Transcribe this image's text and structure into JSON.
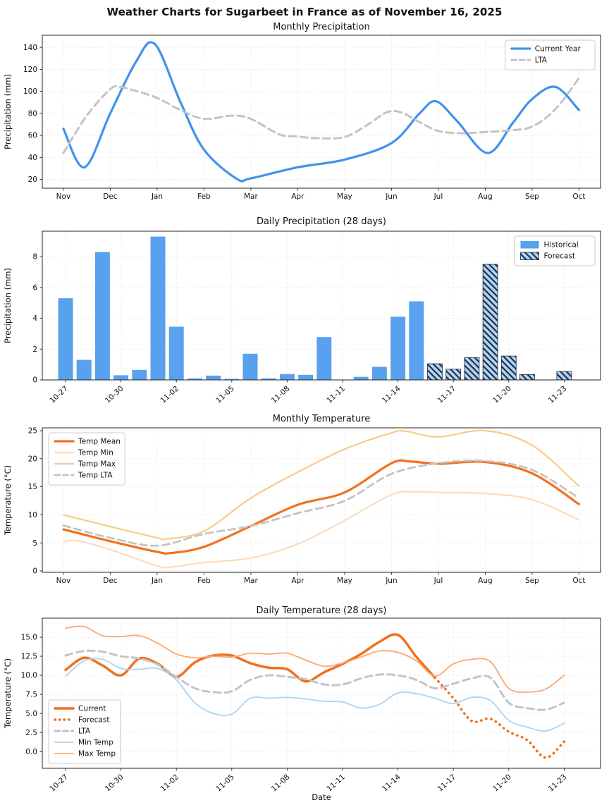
{
  "page": {
    "title": "Weather Charts for Sugarbeet in France as of November 16, 2025"
  },
  "colors": {
    "blue_line": "#4093ec",
    "bar_blue": "#57a1ee",
    "forecast_fill": "#aed2f5",
    "hatch_dark": "#1b2a3d",
    "gray": "#c4c4c4",
    "orange": "#f2701f",
    "peach": "#fbdcbd",
    "tan": "#f9ca8b",
    "light_blue": "#a9d4f3",
    "light_orange": "#f9a870",
    "grid": "#dcdcdc",
    "spine": "#262626",
    "text": "#111111"
  },
  "chart_data": [
    {
      "id": "monthly-precipitation",
      "type": "line",
      "title": "Monthly Precipitation",
      "ylabel": "Precipitation (mm)",
      "xlabel": "",
      "grid": true,
      "xlim": [
        -0.45,
        11.46
      ],
      "ylim": [
        12,
        151
      ],
      "x_ticks": {
        "pos": [
          0,
          1,
          2,
          3,
          4,
          5,
          6,
          7,
          8,
          9,
          10,
          11
        ],
        "labels": [
          "Nov",
          "Dec",
          "Jan",
          "Feb",
          "Mar",
          "Apr",
          "May",
          "Jun",
          "Jul",
          "Aug",
          "Sep",
          "Oct"
        ]
      },
      "y_ticks": {
        "pos": [
          20,
          40,
          60,
          80,
          100,
          120,
          140
        ],
        "labels": [
          "20",
          "40",
          "60",
          "80",
          "100",
          "120",
          "140"
        ]
      },
      "legend_position": "upper-right",
      "series": [
        {
          "name": "Current Year",
          "kind": "line",
          "color": "blue_line",
          "width": 3.2,
          "dash": "solid",
          "x": [
            0,
            0.45,
            1,
            1.55,
            1.95,
            2.5,
            3,
            3.7,
            4,
            5,
            6,
            7,
            7.6,
            7.95,
            8.4,
            9.05,
            9.6,
            10,
            10.5,
            11
          ],
          "values": [
            66,
            31,
            80,
            127,
            143,
            90,
            47,
            20.5,
            21,
            31,
            38,
            53,
            80,
            91,
            73,
            44,
            72,
            93,
            104,
            83
          ]
        },
        {
          "name": "LTA",
          "kind": "line",
          "color": "gray",
          "width": 3,
          "dash": "dashed",
          "x": [
            0,
            0.5,
            1,
            1.2,
            1.5,
            2,
            2.5,
            3,
            3.6,
            4,
            4.6,
            5,
            5.4,
            6,
            6.5,
            6.9,
            7.2,
            7.6,
            8,
            8.5,
            9,
            9.5,
            10,
            10.5,
            11
          ],
          "values": [
            44,
            78,
            102,
            104,
            101,
            94,
            83,
            75,
            78,
            75,
            61,
            59,
            57.5,
            58.5,
            70,
            81,
            81,
            72,
            64,
            62,
            63,
            64.5,
            68,
            84,
            112
          ]
        }
      ]
    },
    {
      "id": "daily-precipitation",
      "type": "bar",
      "title": "Daily Precipitation (28 days)",
      "ylabel": "Precipitation (mm)",
      "xlabel": "",
      "grid": true,
      "xlim": [
        -1.26,
        28.97
      ],
      "ylim": [
        0,
        9.65
      ],
      "dates": [
        "10-27",
        "10-28",
        "10-29",
        "10-30",
        "10-31",
        "11-01",
        "11-02",
        "11-03",
        "11-04",
        "11-05",
        "11-06",
        "11-07",
        "11-08",
        "11-09",
        "11-10",
        "11-11",
        "11-12",
        "11-13",
        "11-14",
        "11-15",
        "11-16",
        "11-17",
        "11-18",
        "11-19",
        "11-20",
        "11-21",
        "11-22",
        "11-23"
      ],
      "x_ticks": {
        "pos": [
          0,
          3,
          6,
          9,
          12,
          15,
          18,
          21,
          24,
          27
        ],
        "labels": [
          "10-27",
          "10-30",
          "11-02",
          "11-05",
          "11-08",
          "11-11",
          "11-14",
          "11-17",
          "11-20",
          "11-23"
        ]
      },
      "y_ticks": {
        "pos": [
          0,
          2,
          4,
          6,
          8
        ],
        "labels": [
          "0",
          "2",
          "4",
          "6",
          "8"
        ]
      },
      "legend_position": "upper-right",
      "series": [
        {
          "name": "Historical",
          "kind": "bar",
          "color": "bar_blue",
          "x_start": 0,
          "values": [
            5.3,
            1.3,
            8.3,
            0.3,
            0.65,
            9.3,
            3.45,
            0.1,
            0.28,
            0.07,
            1.7,
            0.1,
            0.38,
            0.33,
            2.78,
            0,
            0.2,
            0.85,
            4.1,
            5.1
          ]
        },
        {
          "name": "Forecast",
          "kind": "bar",
          "color": "forecast_fill",
          "hatch": true,
          "x_start": 20,
          "values": [
            1.05,
            0.7,
            1.45,
            7.5,
            1.55,
            0.35,
            0,
            0.55
          ]
        }
      ]
    },
    {
      "id": "monthly-temperature",
      "type": "line",
      "title": "Monthly Temperature",
      "ylabel": "Temperature (°C)",
      "xlabel": "",
      "grid": true,
      "xlim": [
        -0.45,
        11.46
      ],
      "ylim": [
        -0.25,
        25.5
      ],
      "x_ticks": {
        "pos": [
          0,
          1,
          2,
          3,
          4,
          5,
          6,
          7,
          8,
          9,
          10,
          11
        ],
        "labels": [
          "Nov",
          "Dec",
          "Jan",
          "Feb",
          "Mar",
          "Apr",
          "May",
          "Jun",
          "Jul",
          "Aug",
          "Sep",
          "Oct"
        ]
      },
      "y_ticks": {
        "pos": [
          0,
          5,
          10,
          15,
          20,
          25
        ],
        "labels": [
          "0",
          "5",
          "10",
          "15",
          "20",
          "25"
        ]
      },
      "legend_position": "upper-left",
      "series": [
        {
          "name": "Temp Mean",
          "kind": "line",
          "color": "orange",
          "width": 3.2,
          "dash": "solid",
          "x": [
            0,
            1,
            2,
            2.3,
            3,
            4,
            5,
            6,
            7,
            7.4,
            8,
            9,
            10,
            11
          ],
          "values": [
            7.4,
            5.3,
            3.4,
            3.2,
            4.3,
            8.0,
            11.8,
            14.0,
            19.2,
            19.5,
            19.1,
            19.4,
            17.4,
            11.9
          ]
        },
        {
          "name": "Temp Min",
          "kind": "line",
          "color": "peach",
          "width": 2.2,
          "dash": "solid",
          "x": [
            0,
            0.3,
            1,
            2,
            2.3,
            3,
            4,
            5,
            6,
            7,
            7.5,
            8,
            9,
            10,
            11
          ],
          "values": [
            5.1,
            5.4,
            3.8,
            0.9,
            0.7,
            1.5,
            2.3,
            4.8,
            9.0,
            13.6,
            14.1,
            14.0,
            13.8,
            12.7,
            9.1
          ]
        },
        {
          "name": "Temp Max",
          "kind": "line",
          "color": "tan",
          "width": 2.2,
          "dash": "solid",
          "x": [
            0,
            1,
            2,
            2.2,
            3,
            4,
            5,
            6,
            7,
            7.3,
            8,
            9,
            10,
            11
          ],
          "values": [
            10.0,
            7.9,
            5.9,
            5.7,
            7.1,
            13.0,
            17.6,
            21.7,
            24.6,
            24.9,
            23.9,
            25.0,
            22.4,
            15.1
          ]
        },
        {
          "name": "Temp LTA",
          "kind": "line",
          "color": "gray",
          "width": 2.8,
          "dash": "dashed",
          "x": [
            0,
            1,
            2,
            3,
            4,
            5,
            6,
            7,
            8,
            9,
            10,
            11
          ],
          "values": [
            8.1,
            5.9,
            4.5,
            6.6,
            8.0,
            10.3,
            12.5,
            17.3,
            19.2,
            19.6,
            18.0,
            13.0
          ]
        }
      ]
    },
    {
      "id": "daily-temperature",
      "type": "line",
      "title": "Daily Temperature (28 days)",
      "ylabel": "Temperature (°C)",
      "xlabel": "Date",
      "grid": true,
      "xlim": [
        -1.26,
        28.97
      ],
      "ylim": [
        -2.2,
        17.5
      ],
      "dates": [
        "10-27",
        "10-28",
        "10-29",
        "10-30",
        "10-31",
        "11-01",
        "11-02",
        "11-03",
        "11-04",
        "11-05",
        "11-06",
        "11-07",
        "11-08",
        "11-09",
        "11-10",
        "11-11",
        "11-12",
        "11-13",
        "11-14",
        "11-15",
        "11-16",
        "11-17",
        "11-18",
        "11-19",
        "11-20",
        "11-21",
        "11-22",
        "11-23"
      ],
      "x_ticks": {
        "pos": [
          0,
          3,
          6,
          9,
          12,
          15,
          18,
          21,
          24,
          27
        ],
        "labels": [
          "10-27",
          "10-30",
          "11-02",
          "11-05",
          "11-08",
          "11-11",
          "11-14",
          "11-17",
          "11-20",
          "11-23"
        ]
      },
      "y_ticks": {
        "pos": [
          0,
          2.5,
          5,
          7.5,
          10,
          12.5,
          15
        ],
        "labels": [
          "0.0",
          "2.5",
          "5.0",
          "7.5",
          "10.0",
          "12.5",
          "15.0"
        ]
      },
      "legend_position": "lower-left",
      "series": [
        {
          "name": "Current",
          "kind": "line",
          "color": "orange",
          "width": 3.5,
          "dash": "solid",
          "x_start": 0,
          "values": [
            10.7,
            12.3,
            11.3,
            10.0,
            12.2,
            11.5,
            9.8,
            11.7,
            12.6,
            12.6,
            11.6,
            11.0,
            10.8,
            9.2,
            10.4,
            11.5,
            12.8,
            14.4,
            15.3,
            12.4,
            9.7
          ]
        },
        {
          "name": "Forecast",
          "kind": "line",
          "color": "orange",
          "width": 3.5,
          "dash": "dotted",
          "x_start": 20,
          "values": [
            9.7,
            7.0,
            4.0,
            4.3,
            2.6,
            1.5,
            -0.8,
            1.3
          ]
        },
        {
          "name": "LTA",
          "kind": "line",
          "color": "gray",
          "width": 3,
          "dash": "dashed",
          "x_start": 0,
          "values": [
            12.6,
            13.2,
            13.1,
            12.5,
            12.2,
            11.4,
            9.8,
            8.3,
            7.8,
            7.9,
            9.4,
            10.0,
            9.8,
            9.5,
            8.8,
            8.8,
            9.6,
            10.1,
            10.0,
            9.4,
            8.3,
            8.9,
            9.6,
            9.7,
            6.4,
            5.7,
            5.5,
            6.4
          ]
        },
        {
          "name": "Min Temp",
          "kind": "line",
          "color": "light_blue",
          "width": 1.8,
          "dash": "solid",
          "x_start": 0,
          "values": [
            9.9,
            11.9,
            12.1,
            10.9,
            10.8,
            10.9,
            9.4,
            6.4,
            5.0,
            4.9,
            7.0,
            7.0,
            7.1,
            6.9,
            6.6,
            6.5,
            5.7,
            6.2,
            7.7,
            7.6,
            7.0,
            6.3,
            7.1,
            6.7,
            4.1,
            3.2,
            2.7,
            3.7
          ]
        },
        {
          "name": "Max Temp",
          "kind": "line",
          "color": "light_orange",
          "width": 1.8,
          "dash": "solid",
          "x_start": 0,
          "values": [
            16.2,
            16.4,
            15.2,
            15.1,
            15.2,
            14.2,
            12.8,
            12.3,
            12.5,
            12.4,
            12.9,
            12.8,
            12.9,
            12.0,
            11.2,
            11.6,
            12.4,
            13.2,
            13.0,
            11.9,
            9.9,
            11.5,
            12.1,
            11.8,
            8.3,
            7.8,
            8.2,
            10.0
          ]
        }
      ]
    }
  ]
}
